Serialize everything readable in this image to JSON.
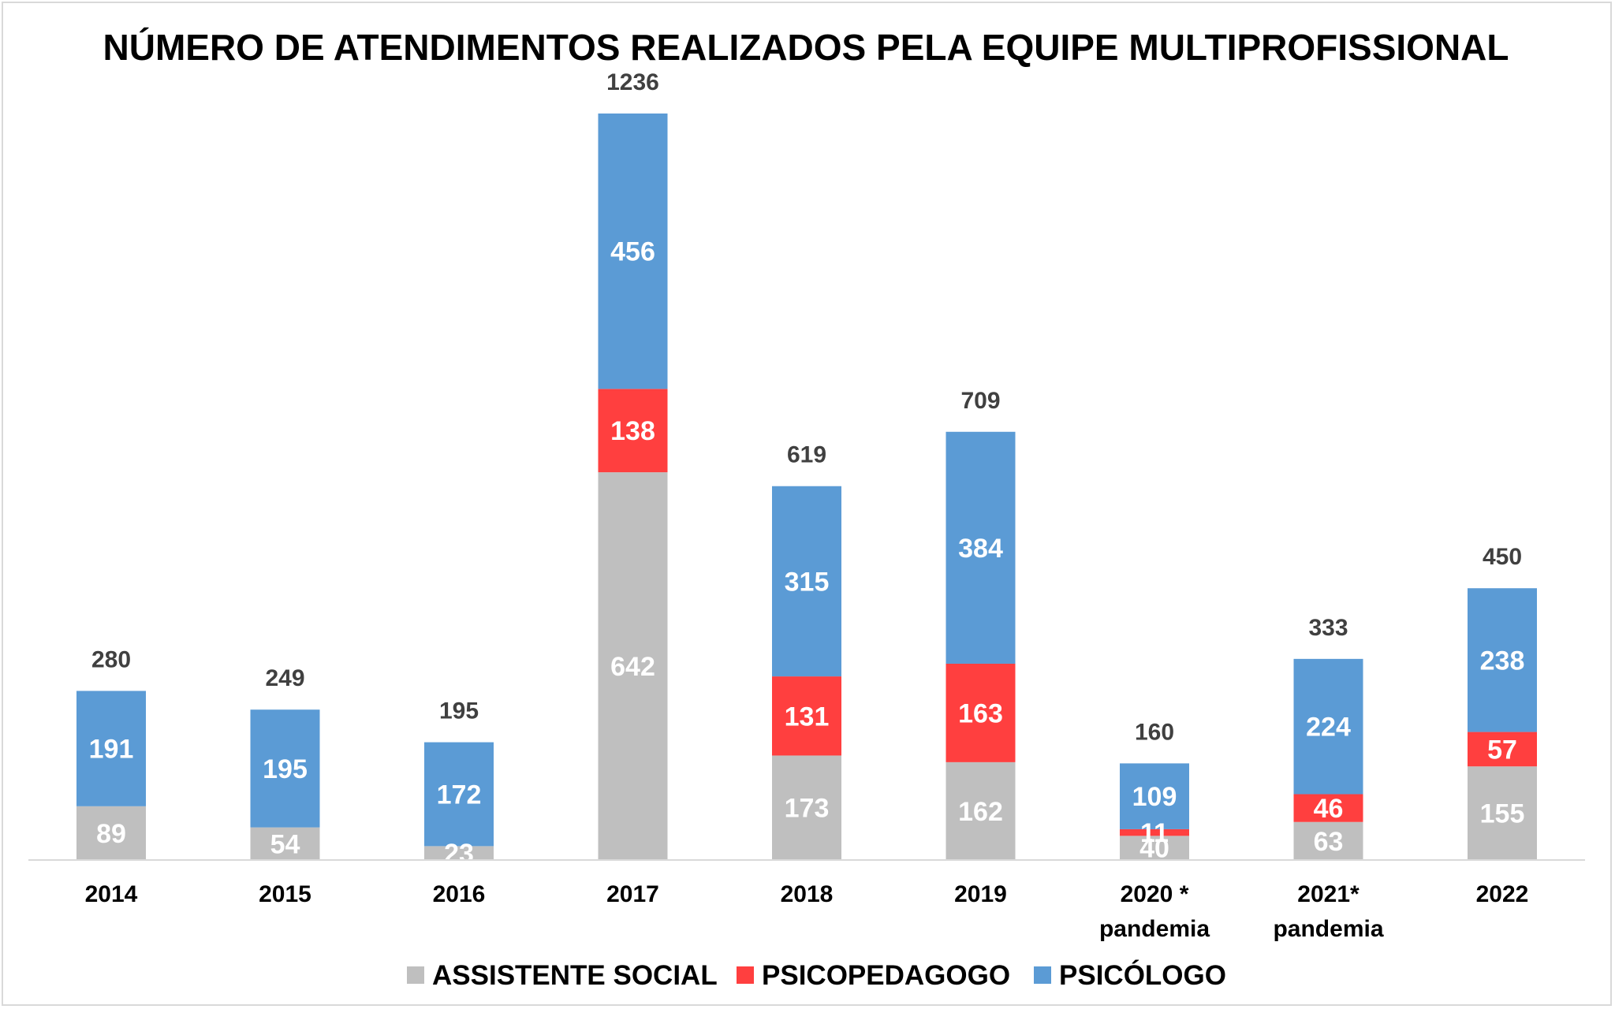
{
  "chart_data": {
    "type": "bar",
    "stacked": true,
    "title": "NÚMERO DE ATENDIMENTOS REALIZADOS PELA EQUIPE MULTIPROFISSIONAL",
    "xlabel": "",
    "ylabel": "",
    "ylim": [
      0,
      1236
    ],
    "grid": false,
    "legend_position": "bottom",
    "categories": [
      [
        "2014"
      ],
      [
        "2015"
      ],
      [
        "2016"
      ],
      [
        "2017"
      ],
      [
        "2018"
      ],
      [
        "2019"
      ],
      [
        "2020 *",
        "pandemia"
      ],
      [
        "2021*",
        "pandemia"
      ],
      [
        "2022"
      ]
    ],
    "series": [
      {
        "name": "ASSISTENTE SOCIAL",
        "color": "#bfbfbf",
        "values": [
          89,
          54,
          23,
          642,
          173,
          162,
          40,
          63,
          155
        ]
      },
      {
        "name": "PSICOPEDAGOGO",
        "color": "#ff3f3f",
        "values": [
          0,
          0,
          0,
          138,
          131,
          163,
          11,
          46,
          57
        ]
      },
      {
        "name": "PSICÓLOGO",
        "color": "#5b9bd5",
        "values": [
          191,
          195,
          172,
          456,
          315,
          384,
          109,
          224,
          238
        ]
      }
    ],
    "totals": [
      280,
      249,
      195,
      1236,
      619,
      709,
      160,
      333,
      450
    ]
  }
}
